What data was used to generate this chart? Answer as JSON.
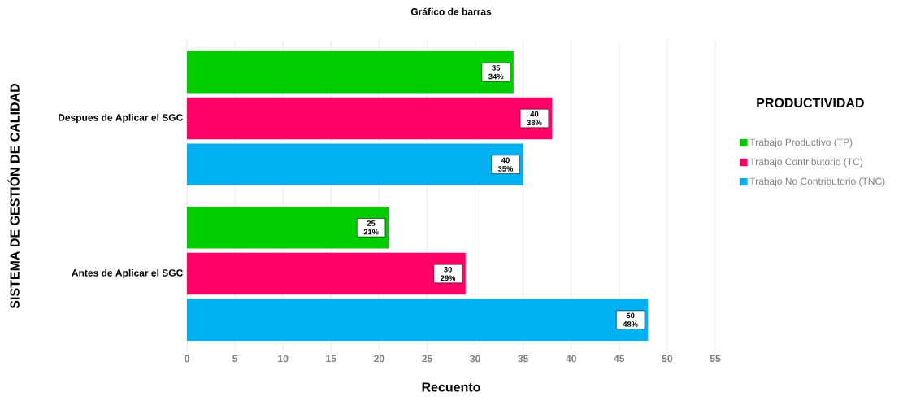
{
  "chart_data": {
    "type": "bar",
    "orientation": "horizontal",
    "title": "Gráfico de barras",
    "xlabel": "Recuento",
    "ylabel": "SISTEMA DE GESTIÓN DE CALIDAD",
    "legend_title": "PRODUCTIVIDAD",
    "categories": [
      "Despues de Aplicar el SGC",
      "Antes de Aplicar el SGC"
    ],
    "series": [
      {
        "name": "Trabajo Productivo (TP)",
        "color": "#00cc00",
        "values": [
          34,
          21
        ],
        "value_labels": [
          "35 34%",
          "25 21%"
        ]
      },
      {
        "name": "Trabajo Contributorio (TC)",
        "color": "#ff0066",
        "values": [
          38,
          29
        ],
        "value_labels": [
          "40 38%",
          "30 29%"
        ]
      },
      {
        "name": "Trabajo No Contributorio (TNC)",
        "color": "#00b0f0",
        "values": [
          35,
          48
        ],
        "value_labels": [
          "40 35%",
          "50 48%"
        ]
      }
    ],
    "xlim": [
      0,
      55
    ],
    "xticks": [
      0,
      5,
      10,
      15,
      20,
      25,
      30,
      35,
      40,
      45,
      50,
      55
    ],
    "grid": "x",
    "legend": "right"
  }
}
